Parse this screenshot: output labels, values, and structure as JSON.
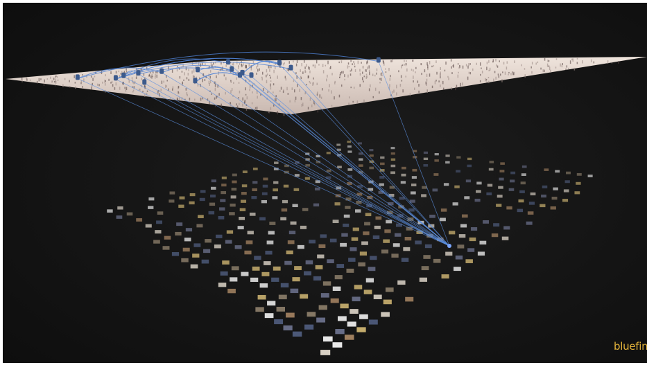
{
  "logo": {
    "text": "bluefin"
  }
}
